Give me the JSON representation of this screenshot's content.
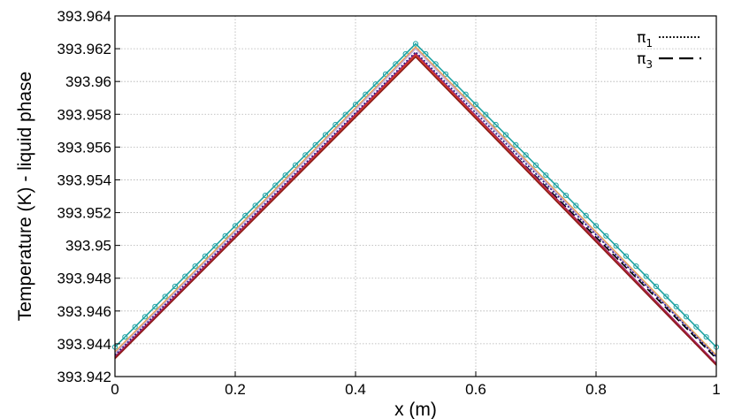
{
  "chart_data": {
    "type": "line",
    "title": "",
    "xlabel": "x (m)",
    "ylabel": "Temperature (K) - liquid phase",
    "xlim": [
      0,
      1
    ],
    "ylim": [
      393.942,
      393.964
    ],
    "x_ticks": [
      "0",
      "0.2",
      "0.4",
      "0.6",
      "0.8",
      "1"
    ],
    "y_ticks": [
      "393.942",
      "393.944",
      "393.946",
      "393.948",
      "393.95",
      "393.952",
      "393.954",
      "393.956",
      "393.958",
      "393.96",
      "393.962",
      "393.964"
    ],
    "grid": true,
    "legend_position": "top-right",
    "legend": [
      {
        "base": "π",
        "sub": "1",
        "style": "dotted"
      },
      {
        "base": "π",
        "sub": "3",
        "style": "dashed"
      }
    ],
    "x": [
      0,
      0.5,
      1
    ],
    "series": [
      {
        "values": [
          393.9438,
          393.9623,
          393.9438
        ],
        "color": "#1fa3a3",
        "style": "solid",
        "markers": true
      },
      {
        "values": [
          393.9435,
          393.9621,
          393.9433
        ],
        "color": "#e8a14b",
        "style": "solid"
      },
      {
        "values": [
          393.9434,
          393.962,
          393.9432
        ],
        "color": "#c9a6d9",
        "style": "solid"
      },
      {
        "values": [
          393.9433,
          393.9618,
          393.9432
        ],
        "color": "#1a1a80",
        "style": "dotted"
      },
      {
        "values": [
          393.9432,
          393.9616,
          393.9431
        ],
        "color": "#000000",
        "style": "dashed"
      },
      {
        "values": [
          393.9432,
          393.9617,
          393.9428
        ],
        "color": "#a0206a",
        "style": "solid"
      },
      {
        "values": [
          393.9431,
          393.9616,
          393.9427
        ],
        "color": "#d94020",
        "style": "solid"
      },
      {
        "values": [
          393.9431,
          393.9615,
          393.9427
        ],
        "color": "#8b1a1a",
        "style": "solid"
      }
    ]
  }
}
